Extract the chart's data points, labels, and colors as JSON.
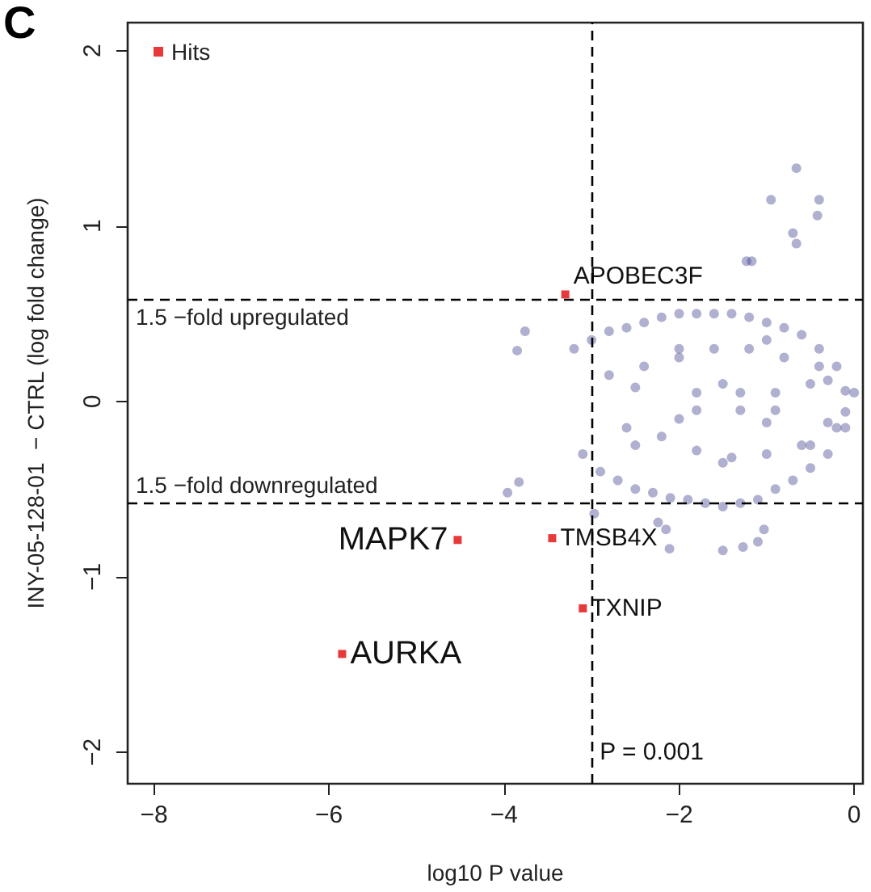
{
  "chart_data": {
    "type": "scatter",
    "xlabel": "log10 P value",
    "ylabel": "INY-05-128-01  − CTRL (log fold change)",
    "xlim": [
      -8.3,
      0.1
    ],
    "ylim": [
      -2.18,
      2.16
    ],
    "xticks": [
      -8,
      -6,
      -4,
      -2,
      0
    ],
    "yticks": [
      -2,
      -1,
      0,
      1,
      2
    ],
    "grid": false,
    "legend": "top left",
    "series": [
      {
        "color": "#3a3a8c",
        "marker": "circle",
        "x": [
          -0.66,
          -0.95,
          -0.4,
          -0.42,
          -0.7,
          -0.66,
          -1.23,
          -1.17,
          -3.76,
          -3.85,
          -3.83,
          -3.96,
          -2.24,
          -2.15,
          -1.03,
          -1.1,
          -1.27,
          -2.97,
          -2.11,
          -1.5,
          -3.2,
          -3.1,
          -3.0,
          -2.9,
          -2.8,
          -2.7,
          -2.6,
          -2.5,
          -2.4,
          -2.3,
          -2.2,
          -2.1,
          -2.0,
          -1.9,
          -1.8,
          -1.7,
          -1.6,
          -1.5,
          -1.4,
          -1.3,
          -1.2,
          -1.1,
          -1.0,
          -0.9,
          -0.8,
          -0.7,
          -0.6,
          -0.5,
          -0.4,
          -0.3,
          -0.2,
          -0.1,
          0.0,
          -2.8,
          -2.6,
          -2.4,
          -2.2,
          -2.0,
          -1.8,
          -1.6,
          -1.4,
          -1.2,
          -1.0,
          -0.8,
          -0.6,
          -0.4,
          -0.2,
          -2.5,
          -2.0,
          -1.5,
          -1.0,
          -0.5,
          -2.5,
          -2.0,
          -1.5,
          -1.0,
          -0.5,
          -0.3,
          -0.3,
          -0.1,
          -0.1,
          -1.8,
          -1.3,
          -0.9,
          -1.8,
          -1.3,
          -0.9
        ],
        "values": [
          1.33,
          1.15,
          1.15,
          1.06,
          0.96,
          0.9,
          0.8,
          0.8,
          0.4,
          0.29,
          -0.46,
          -0.52,
          -0.69,
          -0.73,
          -0.73,
          -0.8,
          -0.83,
          -0.64,
          -0.84,
          -0.85,
          0.3,
          -0.3,
          0.35,
          -0.4,
          0.4,
          -0.45,
          0.42,
          -0.5,
          0.45,
          -0.52,
          0.48,
          -0.55,
          0.5,
          -0.56,
          0.5,
          -0.58,
          0.5,
          -0.6,
          0.5,
          -0.58,
          0.48,
          -0.56,
          0.45,
          -0.5,
          0.42,
          -0.45,
          0.38,
          -0.38,
          0.3,
          -0.3,
          0.2,
          -0.15,
          0.05,
          0.15,
          -0.15,
          0.2,
          -0.2,
          0.25,
          -0.28,
          0.3,
          -0.32,
          0.3,
          -0.3,
          0.25,
          -0.25,
          0.2,
          -0.15,
          0.08,
          -0.1,
          0.1,
          -0.12,
          0.1,
          -0.25,
          0.3,
          -0.35,
          0.35,
          -0.25,
          0.12,
          -0.12,
          0.06,
          -0.06,
          0.05,
          0.05,
          0.05,
          -0.05,
          -0.05,
          -0.05
        ]
      },
      {
        "name": "Hits",
        "color": "#e8393a",
        "marker": "square",
        "x": [
          -3.3,
          -4.53,
          -3.45,
          -3.1,
          -5.85
        ],
        "values": [
          0.61,
          -0.79,
          -0.78,
          -1.18,
          -1.44
        ]
      }
    ],
    "ref_lines": [
      {
        "axis": "y",
        "value": 0.585,
        "label": "1.5 −fold upregulated",
        "line_style": "dashed",
        "color": "#000000"
      },
      {
        "axis": "y",
        "value": -0.585,
        "label": "1.5 −fold downregulated",
        "line_style": "dashed",
        "color": "#000000"
      },
      {
        "axis": "x",
        "value": -3,
        "line_style": "dashed",
        "color": "#000000"
      }
    ],
    "annotations": [
      "C",
      {
        "text": "APOBEC3F",
        "x": -3.3,
        "y": 0.61
      },
      {
        "text": "MAPK7",
        "x": -4.53,
        "y": -0.79
      },
      {
        "text": "TMSB4X",
        "x": -3.45,
        "y": -0.78
      },
      {
        "text": "TXNIP",
        "x": -3.1,
        "y": -1.18
      },
      {
        "text": "AURKA",
        "x": -5.85,
        "y": -1.44
      },
      {
        "text": "P = 0.001",
        "x": -3,
        "y": -2
      }
    ]
  }
}
